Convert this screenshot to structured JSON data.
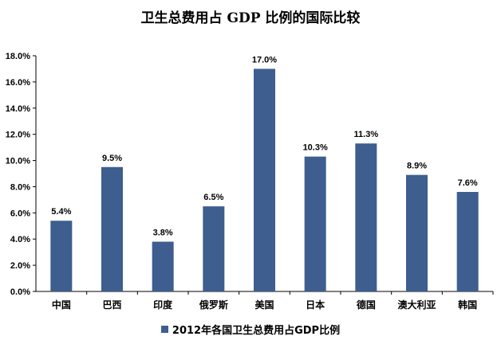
{
  "chart_data": {
    "type": "bar",
    "title": "卫生总费用占 GDP 比例的国际比较",
    "categories": [
      "中国",
      "巴西",
      "印度",
      "俄罗斯",
      "美国",
      "日本",
      "德国",
      "澳大利亚",
      "韩国"
    ],
    "series": [
      {
        "name": "2012年各国卫生总费用占GDP比例",
        "values": [
          5.4,
          9.5,
          3.8,
          6.5,
          17.0,
          10.3,
          11.3,
          8.9,
          7.6
        ],
        "data_labels": [
          "5.4%",
          "9.5%",
          "3.8%",
          "6.5%",
          "17.0%",
          "10.3%",
          "11.3%",
          "8.9%",
          "7.6%"
        ],
        "color": "#3D5E8F"
      }
    ],
    "ylim": [
      0,
      18
    ],
    "yticks": [
      0,
      2,
      4,
      6,
      8,
      10,
      12,
      14,
      16,
      18
    ],
    "ytick_labels": [
      "0.0%",
      "2.0%",
      "4.0%",
      "6.0%",
      "8.0%",
      "10.0%",
      "12.0%",
      "14.0%",
      "16.0%",
      "18.0%"
    ],
    "xlabel": "",
    "ylabel": "",
    "grid": false,
    "legend_position": "bottom"
  }
}
